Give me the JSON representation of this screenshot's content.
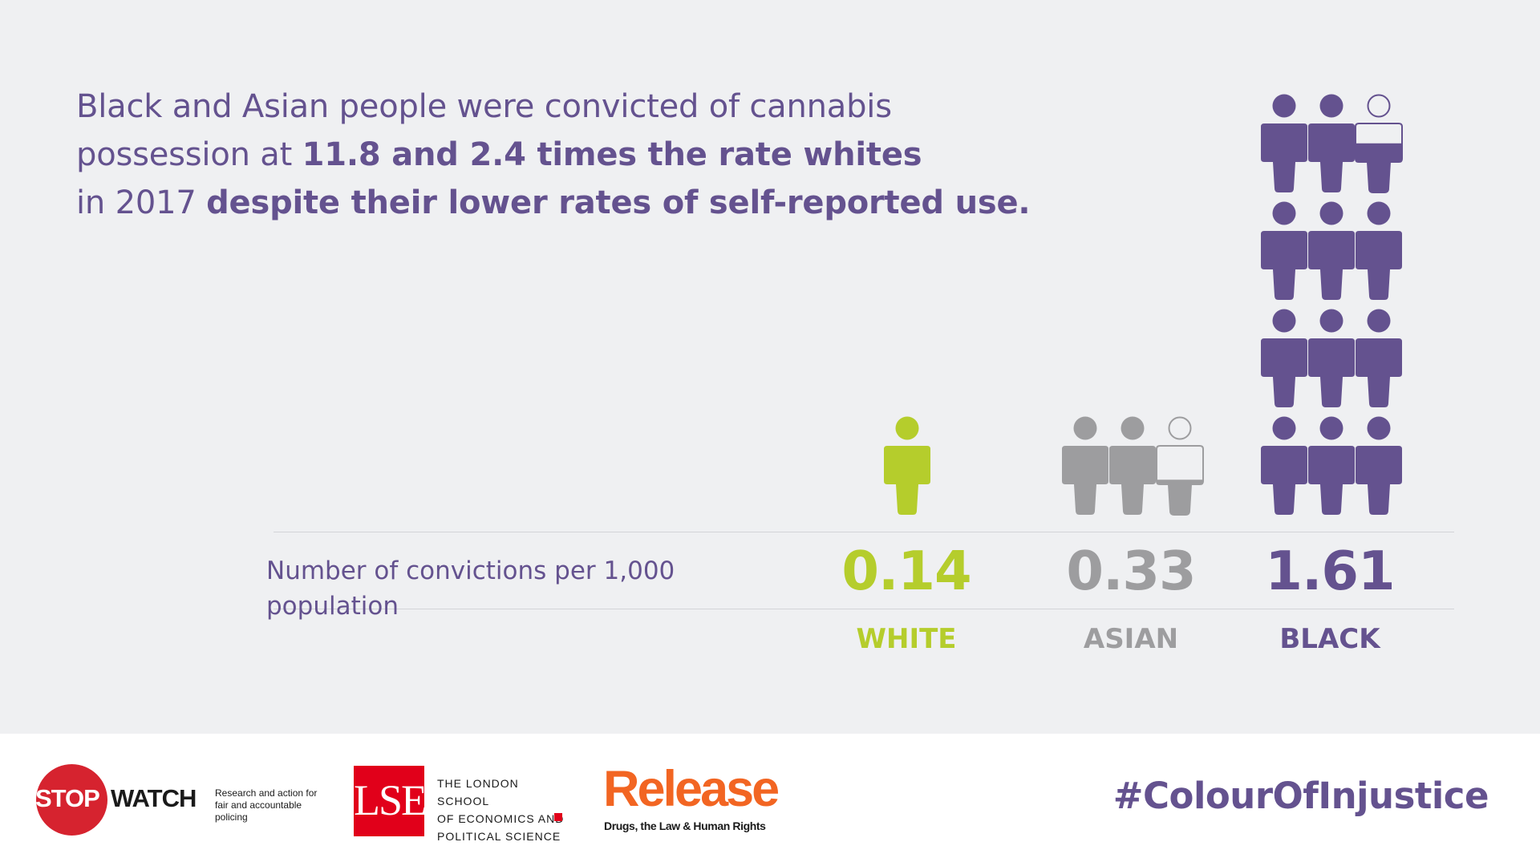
{
  "headline": {
    "p1": "Black and Asian people were convicted of cannabis possession at ",
    "b1": "11.8 and 2.4 times the rate whites",
    "p2": " in 2017 ",
    "b2": "despite their lower rates of self-reported use."
  },
  "chart_data": {
    "type": "pictograph",
    "metric_label": "Number of convictions per 1,000 population",
    "categories": [
      "WHITE",
      "ASIAN",
      "BLACK"
    ],
    "values": [
      0.14,
      0.33,
      1.61
    ],
    "value_labels": [
      "0.14",
      "0.33",
      "1.61"
    ],
    "colors": [
      "#b5cd2c",
      "#9d9d9f",
      "#64528f"
    ]
  },
  "footer": {
    "stopwatch": {
      "word_red": "STOP",
      "word_black": "WATCH",
      "tagline_1": "Research and action for",
      "tagline_2": "fair and accountable policing"
    },
    "lse": {
      "letters": "LSE",
      "line_1": "THE LONDON SCHOOL",
      "line_2": "OF ECONOMICS AND",
      "line_3": "POLITICAL SCIENCE"
    },
    "release": {
      "word": "Release",
      "tagline": "Drugs, the Law & Human Rights"
    },
    "hashtag": "#ColourOfInjustice"
  }
}
